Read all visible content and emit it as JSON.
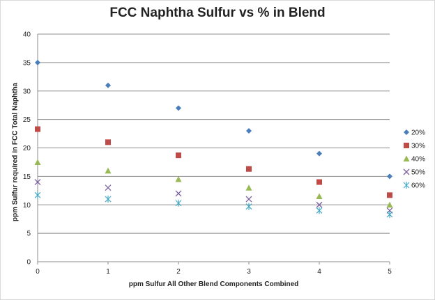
{
  "chart_data": {
    "type": "scatter",
    "title": "FCC Naphtha Sulfur vs % in Blend",
    "xlabel": "ppm Sulfur  All Other Blend Components Combined",
    "ylabel": "ppm Sulfur required in FCC Total  Naphtha",
    "xlim": [
      0,
      5
    ],
    "ylim": [
      0,
      40
    ],
    "x_ticks": [
      "0",
      "1",
      "2",
      "3",
      "4",
      "5"
    ],
    "y_ticks": [
      "0",
      "5",
      "10",
      "15",
      "20",
      "25",
      "30",
      "35",
      "40"
    ],
    "grid": "horizontal",
    "legend_position": "right",
    "x": [
      0,
      1,
      2,
      3,
      4,
      5
    ],
    "series": [
      {
        "name": "20%",
        "marker": "diamond",
        "color": "#4a7ebb",
        "values": [
          35,
          31,
          27,
          23,
          19,
          15
        ]
      },
      {
        "name": "30%",
        "marker": "square",
        "color": "#be4b48",
        "values": [
          23.3,
          21,
          18.7,
          16.3,
          14,
          11.7
        ]
      },
      {
        "name": "40%",
        "marker": "triangle",
        "color": "#98b954",
        "values": [
          17.5,
          16,
          14.5,
          13,
          11.5,
          10
        ]
      },
      {
        "name": "50%",
        "marker": "x",
        "color": "#7d60a0",
        "values": [
          14,
          13,
          12,
          11,
          10,
          9
        ]
      },
      {
        "name": "60%",
        "marker": "star",
        "color": "#46aac5",
        "values": [
          11.7,
          11,
          10.3,
          9.7,
          9,
          8.3
        ]
      }
    ]
  }
}
